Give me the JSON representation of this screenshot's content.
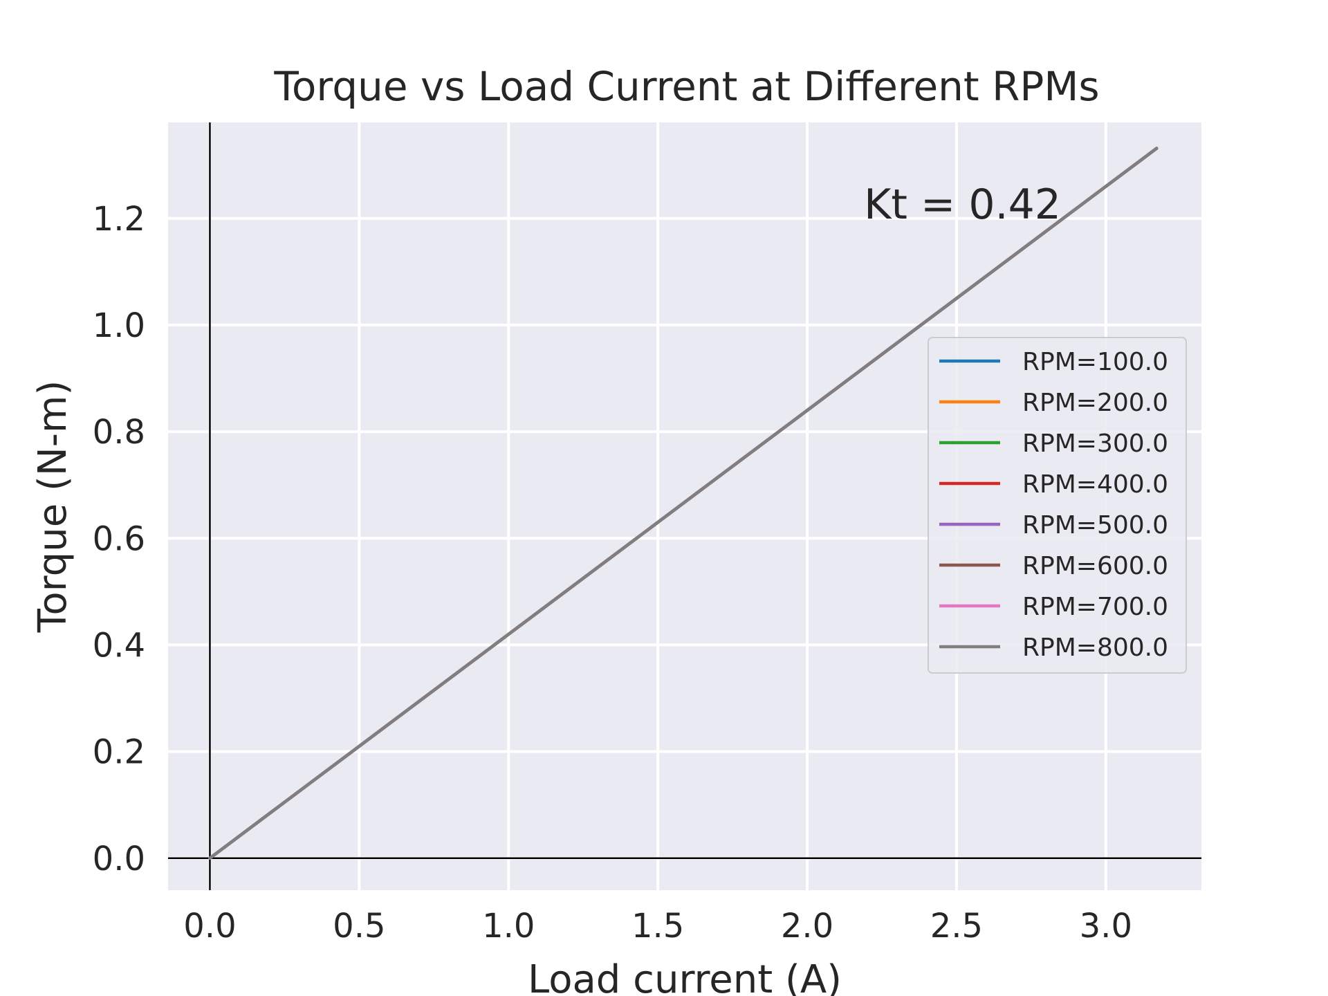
{
  "chart_data": {
    "type": "line",
    "title": "Torque vs Load Current at Different RPMs",
    "xlabel": "Load current (A)",
    "ylabel": "Torque (N-m)",
    "xlim": [
      -0.14,
      3.32
    ],
    "ylim": [
      -0.06,
      1.38
    ],
    "xticks": [
      0.0,
      0.5,
      1.0,
      1.5,
      2.0,
      2.5,
      3.0
    ],
    "yticks": [
      0.0,
      0.2,
      0.4,
      0.6,
      0.8,
      1.0,
      1.2
    ],
    "xtick_labels": [
      "0.0",
      "0.5",
      "1.0",
      "1.5",
      "2.0",
      "2.5",
      "3.0"
    ],
    "ytick_labels": [
      "0.0",
      "0.2",
      "0.4",
      "0.6",
      "0.8",
      "1.0",
      "1.2"
    ],
    "grid": true,
    "background": "#eaeaf2",
    "legend_position": "center-right",
    "annotation": {
      "text": "Kt = 0.42",
      "x": 2.19,
      "y": 1.2
    },
    "series": [
      {
        "name": "RPM=100.0",
        "color": "#1f77b4",
        "x": [
          0.0,
          3.17
        ],
        "y": [
          0.0,
          1.3314
        ]
      },
      {
        "name": "RPM=200.0",
        "color": "#ff7f0e",
        "x": [
          0.0,
          3.17
        ],
        "y": [
          0.0,
          1.3314
        ]
      },
      {
        "name": "RPM=300.0",
        "color": "#2ca02c",
        "x": [
          0.0,
          3.17
        ],
        "y": [
          0.0,
          1.3314
        ]
      },
      {
        "name": "RPM=400.0",
        "color": "#d62728",
        "x": [
          0.0,
          3.17
        ],
        "y": [
          0.0,
          1.3314
        ]
      },
      {
        "name": "RPM=500.0",
        "color": "#9467bd",
        "x": [
          0.0,
          3.17
        ],
        "y": [
          0.0,
          1.3314
        ]
      },
      {
        "name": "RPM=600.0",
        "color": "#8c564b",
        "x": [
          0.0,
          3.17
        ],
        "y": [
          0.0,
          1.3314
        ]
      },
      {
        "name": "RPM=700.0",
        "color": "#e377c2",
        "x": [
          0.0,
          3.17
        ],
        "y": [
          0.0,
          1.3314
        ]
      },
      {
        "name": "RPM=800.0",
        "color": "#7f7f7f",
        "x": [
          0.0,
          3.17
        ],
        "y": [
          0.0,
          1.3314
        ]
      }
    ]
  }
}
